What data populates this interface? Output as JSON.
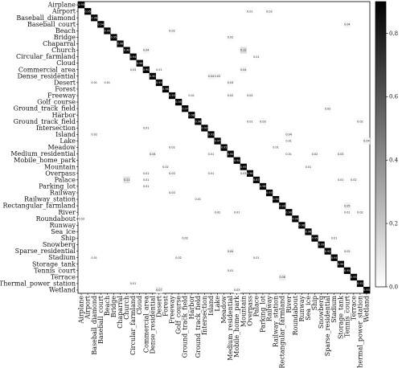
{
  "chart_data": {
    "type": "heatmap",
    "title": "",
    "xlabel": "",
    "ylabel": "",
    "classes": [
      "Airplane",
      "Airport",
      "Baseball_diamond",
      "Baseball_court",
      "Beach",
      "Bridge",
      "Chaparral",
      "Church",
      "Circular_farmland",
      "Cloud",
      "Commercial_area",
      "Dense_residential",
      "Desert",
      "Forest",
      "Freeway",
      "Golf_course",
      "Ground_track_field",
      "Harbor",
      "Ground_track_field",
      "Intersection",
      "Island",
      "Lake",
      "Meadow",
      "Medium_residential",
      "Mobile_home_park",
      "Mountain",
      "Overpass",
      "Palace",
      "Parking_lot",
      "Railway",
      "Railway_station",
      "Rectangular_farmland",
      "River",
      "Roundabout",
      "Runway",
      "Sea_ice",
      "Ship",
      "Snowberg",
      "Sparse_residential",
      "Stadium",
      "Storage_tank",
      "Tennis_court",
      "Terrace",
      "Thermal_power_station",
      "Wetland"
    ],
    "diagonal": [
      0.99,
      0.95,
      0.96,
      0.94,
      0.95,
      0.95,
      0.98,
      0.9,
      0.94,
      0.98,
      0.9,
      0.9,
      0.95,
      0.96,
      0.95,
      0.95,
      0.97,
      0.98,
      0.96,
      0.92,
      0.93,
      0.97,
      0.95,
      0.9,
      0.94,
      0.95,
      0.96,
      0.87,
      0.96,
      0.95,
      0.9,
      0.9,
      0.9,
      0.94,
      0.98,
      0.96,
      0.95,
      0.99,
      0.92,
      0.94,
      0.96,
      0.95,
      0.95,
      0.92,
      0.93
    ],
    "off_diagonal": [
      {
        "row": 1,
        "col": 26,
        "value": 0.01
      },
      {
        "row": 1,
        "col": 29,
        "value": 0.02
      },
      {
        "row": 3,
        "col": 41,
        "value": 0.04
      },
      {
        "row": 4,
        "col": 14,
        "value": 0.02
      },
      {
        "row": 5,
        "col": 23,
        "value": 0.02
      },
      {
        "row": 7,
        "col": 10,
        "value": 0.04
      },
      {
        "row": 7,
        "col": 25,
        "value": 0.12
      },
      {
        "row": 8,
        "col": 27,
        "value": 0.01
      },
      {
        "row": 10,
        "col": 8,
        "value": 0.03
      },
      {
        "row": 10,
        "col": 12,
        "value": 0.01
      },
      {
        "row": 10,
        "col": 25,
        "value": 0.04
      },
      {
        "row": 11,
        "col": 20,
        "value": 0.04
      },
      {
        "row": 11,
        "col": 21,
        "value": 0.03
      },
      {
        "row": 12,
        "col": 2,
        "value": 0.01
      },
      {
        "row": 12,
        "col": 4,
        "value": 0.01
      },
      {
        "row": 12,
        "col": 23,
        "value": 0.03
      },
      {
        "row": 14,
        "col": 17,
        "value": 0.01
      },
      {
        "row": 14,
        "col": 23,
        "value": 0.02
      },
      {
        "row": 14,
        "col": 26,
        "value": 0.02
      },
      {
        "row": 16,
        "col": 38,
        "value": 0.02
      },
      {
        "row": 18,
        "col": 26,
        "value": 0.01
      },
      {
        "row": 18,
        "col": 28,
        "value": 0.03
      },
      {
        "row": 18,
        "col": 43,
        "value": 0.02
      },
      {
        "row": 19,
        "col": 10,
        "value": 0.01
      },
      {
        "row": 20,
        "col": 2,
        "value": 0.02
      },
      {
        "row": 20,
        "col": 32,
        "value": 0.04
      },
      {
        "row": 21,
        "col": 32,
        "value": 0.01
      },
      {
        "row": 21,
        "col": 44,
        "value": 0.04
      },
      {
        "row": 22,
        "col": 14,
        "value": 0.02
      },
      {
        "row": 22,
        "col": 30,
        "value": 0.01
      },
      {
        "row": 23,
        "col": 11,
        "value": 0.04
      },
      {
        "row": 23,
        "col": 20,
        "value": 0.01
      },
      {
        "row": 23,
        "col": 32,
        "value": 0.01
      },
      {
        "row": 23,
        "col": 36,
        "value": 0.02
      },
      {
        "row": 23,
        "col": 40,
        "value": 0.03
      },
      {
        "row": 25,
        "col": 13,
        "value": 0.02
      },
      {
        "row": 25,
        "col": 35,
        "value": 0.01
      },
      {
        "row": 26,
        "col": 10,
        "value": 0.01
      },
      {
        "row": 26,
        "col": 14,
        "value": 0.03
      },
      {
        "row": 26,
        "col": 20,
        "value": 0.01
      },
      {
        "row": 26,
        "col": 25,
        "value": 0.03
      },
      {
        "row": 27,
        "col": 7,
        "value": 0.11
      },
      {
        "row": 27,
        "col": 10,
        "value": 0.01
      },
      {
        "row": 27,
        "col": 40,
        "value": 0.01
      },
      {
        "row": 27,
        "col": 42,
        "value": 0.02
      },
      {
        "row": 28,
        "col": 10,
        "value": 0.01
      },
      {
        "row": 29,
        "col": 14,
        "value": 0.03
      },
      {
        "row": 30,
        "col": 18,
        "value": 0.01
      },
      {
        "row": 31,
        "col": 41,
        "value": 0.05
      },
      {
        "row": 32,
        "col": 21,
        "value": 0.02
      },
      {
        "row": 32,
        "col": 24,
        "value": 0.01
      },
      {
        "row": 32,
        "col": 41,
        "value": 0.01
      },
      {
        "row": 32,
        "col": 43,
        "value": 0.02
      },
      {
        "row": 33,
        "col": 0,
        "value": 0.03
      },
      {
        "row": 36,
        "col": 16,
        "value": 0.02
      },
      {
        "row": 36,
        "col": 39,
        "value": 0.01
      },
      {
        "row": 38,
        "col": 23,
        "value": 0.04
      },
      {
        "row": 38,
        "col": 41,
        "value": 0.02
      },
      {
        "row": 39,
        "col": 2,
        "value": 0.01
      },
      {
        "row": 39,
        "col": 15,
        "value": 0.02
      },
      {
        "row": 39,
        "col": 27,
        "value": 0.01
      },
      {
        "row": 41,
        "col": 23,
        "value": 0.01
      },
      {
        "row": 42,
        "col": 31,
        "value": 0.06
      },
      {
        "row": 43,
        "col": 8,
        "value": 0.01
      },
      {
        "row": 44,
        "col": 12,
        "value": 0.07
      },
      {
        "row": 44,
        "col": 24,
        "value": 0.03
      }
    ],
    "colorbar": {
      "min": 0.0,
      "max": 0.9,
      "ticks": [
        "0.0",
        "0.2",
        "0.4",
        "0.6",
        "0.8"
      ],
      "colormap": "greys",
      "low_color": "#ffffff",
      "high_color": "#000000"
    },
    "grid": false,
    "legend": "none"
  }
}
